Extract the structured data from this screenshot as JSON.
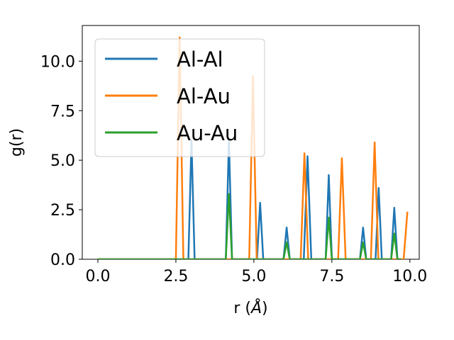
{
  "chart_data": {
    "type": "line",
    "xlabel": "r (",
    "xlabel_unit": "Å",
    "xlabel_close": ")",
    "ylabel": "g(r)",
    "xlim": [
      -0.5,
      10.3
    ],
    "ylim": [
      0,
      11.8
    ],
    "xticks": [
      0.0,
      2.5,
      5.0,
      7.5,
      10.0
    ],
    "xtick_labels": [
      "0.0",
      "2.5",
      "5.0",
      "7.5",
      "10.0"
    ],
    "yticks": [
      0.0,
      2.5,
      5.0,
      7.5,
      10.0
    ],
    "ytick_labels": [
      "0.0",
      "2.5",
      "5.0",
      "7.5",
      "10.0"
    ],
    "grid": false,
    "legend_position": "top-left",
    "series": [
      {
        "name": "Al-Al",
        "color": "#1f77b4",
        "x": [
          0.0,
          2.9,
          3.0,
          3.1,
          4.1,
          4.2,
          4.3,
          5.1,
          5.2,
          5.3,
          5.95,
          6.05,
          6.15,
          6.6,
          6.72,
          6.84,
          7.3,
          7.4,
          7.5,
          8.4,
          8.5,
          8.6,
          8.9,
          9.0,
          9.1,
          9.4,
          9.5,
          9.6,
          9.72
        ],
        "y": [
          0.0,
          0.0,
          6.0,
          0.0,
          0.0,
          6.0,
          0.0,
          0.0,
          2.85,
          0.0,
          0.0,
          1.6,
          0.0,
          0.0,
          5.2,
          0.0,
          0.0,
          4.25,
          0.0,
          0.0,
          1.6,
          0.0,
          0.0,
          3.6,
          0.0,
          0.0,
          2.6,
          0.0,
          0.0
        ]
      },
      {
        "name": "Al-Au",
        "color": "#ff7f0e",
        "x": [
          0.0,
          2.5,
          2.62,
          2.74,
          4.85,
          4.97,
          5.09,
          6.5,
          6.62,
          6.74,
          7.7,
          7.82,
          7.94,
          8.75,
          8.87,
          8.99,
          9.8,
          9.92
        ],
        "y": [
          0.0,
          0.0,
          11.2,
          0.0,
          0.0,
          9.25,
          0.0,
          0.0,
          5.35,
          0.0,
          0.0,
          5.1,
          0.0,
          0.0,
          5.9,
          0.0,
          0.0,
          2.4
        ]
      },
      {
        "name": "Au-Au",
        "color": "#2ca02c",
        "x": [
          0.0,
          4.1,
          4.2,
          4.3,
          5.95,
          6.05,
          6.15,
          7.3,
          7.4,
          7.5,
          8.4,
          8.5,
          8.6,
          9.4,
          9.5,
          9.6,
          9.72
        ],
        "y": [
          0.0,
          0.0,
          3.3,
          0.0,
          0.0,
          0.85,
          0.0,
          0.0,
          2.1,
          0.0,
          0.0,
          0.85,
          0.0,
          0.0,
          1.3,
          0.0,
          0.0
        ]
      }
    ]
  }
}
